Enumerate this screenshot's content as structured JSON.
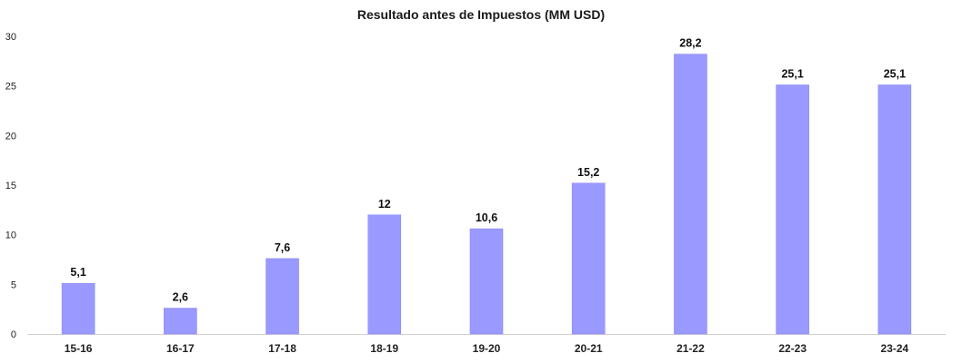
{
  "chart_data": {
    "type": "bar",
    "title": "Resultado antes de Impuestos (MM USD)",
    "xlabel": "",
    "ylabel": "",
    "categories": [
      "15-16",
      "16-17",
      "17-18",
      "18-19",
      "19-20",
      "20-21",
      "21-22",
      "22-23",
      "23-24"
    ],
    "values": [
      5.1,
      2.6,
      7.6,
      12,
      10.6,
      15.2,
      28.2,
      25.1,
      25.1
    ],
    "value_labels": [
      "5,1",
      "2,6",
      "7,6",
      "12",
      "10,6",
      "15,2",
      "28,2",
      "25,1",
      "25,1"
    ],
    "ylim": [
      0,
      30
    ],
    "yticks": [
      0,
      5,
      10,
      15,
      20,
      25,
      30
    ],
    "grid": false,
    "legend": "none",
    "bar_color": "#9999ff"
  }
}
